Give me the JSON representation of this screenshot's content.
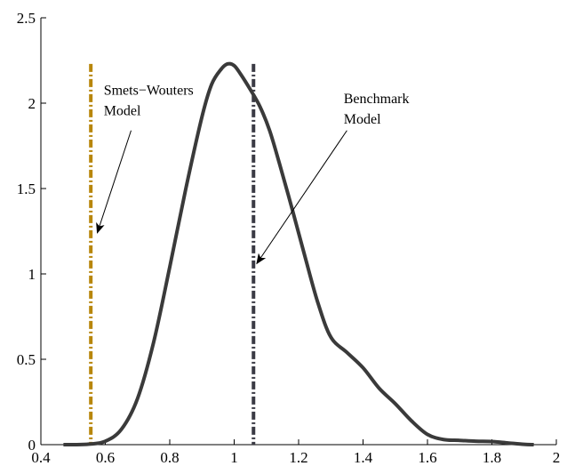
{
  "chart_data": {
    "type": "line",
    "title": "",
    "xlabel": "",
    "ylabel": "",
    "xlim": [
      0.4,
      2.0
    ],
    "ylim": [
      0,
      2.5
    ],
    "xticks": [
      0.4,
      0.6,
      0.8,
      1.0,
      1.2,
      1.4,
      1.6,
      1.8,
      2.0
    ],
    "xtick_labels": [
      "0.4",
      "0.6",
      "0.8",
      "1",
      "1.2",
      "1.4",
      "1.6",
      "1.8",
      "2"
    ],
    "yticks": [
      0,
      0.5,
      1.0,
      1.5,
      2.0,
      2.5
    ],
    "ytick_labels": [
      "0",
      "0.5",
      "1",
      "1.5",
      "2",
      "2.5"
    ],
    "grid": false,
    "series": [
      {
        "style": "solid",
        "color": "#3a3a3a",
        "x": [
          0.47,
          0.5,
          0.55,
          0.6,
          0.65,
          0.7,
          0.75,
          0.8,
          0.85,
          0.9,
          0.93,
          0.96,
          0.98,
          1.0,
          1.02,
          1.05,
          1.08,
          1.11,
          1.14,
          1.18,
          1.22,
          1.26,
          1.3,
          1.35,
          1.4,
          1.45,
          1.5,
          1.55,
          1.6,
          1.65,
          1.7,
          1.75,
          1.8,
          1.85,
          1.9,
          1.93
        ],
        "y": [
          0.0,
          0.0,
          0.003,
          0.02,
          0.09,
          0.27,
          0.6,
          1.04,
          1.5,
          1.92,
          2.11,
          2.2,
          2.23,
          2.22,
          2.17,
          2.08,
          1.98,
          1.84,
          1.65,
          1.38,
          1.1,
          0.83,
          0.63,
          0.54,
          0.45,
          0.33,
          0.24,
          0.14,
          0.06,
          0.03,
          0.025,
          0.02,
          0.018,
          0.01,
          0.002,
          0.0
        ]
      }
    ],
    "reference_lines": [
      {
        "orientation": "vertical",
        "x": 0.555,
        "y_top": 2.23,
        "style": "dash-dot",
        "color": "#b8860b"
      },
      {
        "orientation": "vertical",
        "x": 1.06,
        "y_top": 2.23,
        "style": "dash-dot",
        "color": "#3a3a44"
      }
    ],
    "annotations": [
      {
        "line1": "Smets−Wouters",
        "line2": "Model",
        "text_x": 0.595,
        "text_y1": 2.05,
        "text_y2": 1.93,
        "arrow_from": [
          0.68,
          1.84
        ],
        "arrow_to": [
          0.575,
          1.24
        ]
      },
      {
        "line1": "Benchmark",
        "line2": "Model",
        "text_x": 1.34,
        "text_y1": 2.0,
        "text_y2": 1.88,
        "arrow_from": [
          1.35,
          1.84
        ],
        "arrow_to": [
          1.07,
          1.06
        ]
      }
    ]
  }
}
